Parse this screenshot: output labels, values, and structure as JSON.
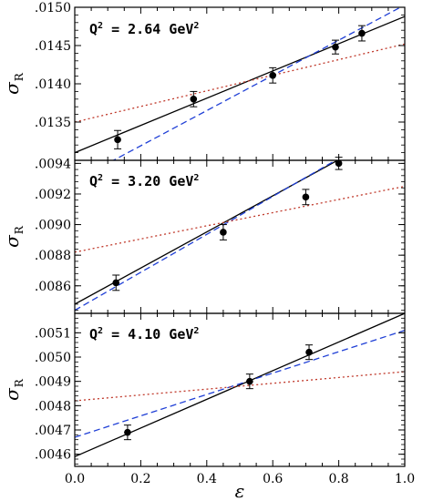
{
  "chart_data": [
    {
      "type": "scatter",
      "annotation": {
        "prefix": "Q",
        "sup": "2",
        "value": " = 2.64 GeV",
        "unit_sup": "2"
      },
      "ylabel": {
        "main": "σ",
        "sub": "R"
      },
      "xlim": [
        0.0,
        1.0
      ],
      "ylim": [
        0.013,
        0.015
      ],
      "yticks": [
        0.0135,
        0.014,
        0.0145,
        0.015
      ],
      "ytick_labels": [
        ".0135",
        ".0140",
        ".0145",
        ".0150"
      ],
      "points": [
        {
          "x": 0.13,
          "y": 0.01327,
          "err": 0.00012
        },
        {
          "x": 0.36,
          "y": 0.0138,
          "err": 0.0001
        },
        {
          "x": 0.6,
          "y": 0.01411,
          "err": 0.0001
        },
        {
          "x": 0.79,
          "y": 0.01448,
          "err": 9e-05
        },
        {
          "x": 0.87,
          "y": 0.01466,
          "err": 0.0001
        }
      ],
      "fits": [
        {
          "style": "solid",
          "color": "#000000",
          "y0": 0.0131,
          "y1": 0.01488
        },
        {
          "style": "dashed",
          "color": "#1f3fd6",
          "y0": 0.01273,
          "y1": 0.01503
        },
        {
          "style": "dotted",
          "color": "#c0392b",
          "y0": 0.0135,
          "y1": 0.01452
        }
      ]
    },
    {
      "type": "scatter",
      "annotation": {
        "prefix": "Q",
        "sup": "2",
        "value": " = 3.20 GeV",
        "unit_sup": "2"
      },
      "ylabel": {
        "main": "σ",
        "sub": "R"
      },
      "xlim": [
        0.0,
        1.0
      ],
      "ylim": [
        0.00842,
        0.00942
      ],
      "yticks": [
        0.0086,
        0.0088,
        0.009,
        0.0092,
        0.0094
      ],
      "ytick_labels": [
        ".0086",
        ".0088",
        ".0090",
        ".0092",
        ".0094"
      ],
      "points": [
        {
          "x": 0.125,
          "y": 0.00862,
          "err": 5e-05
        },
        {
          "x": 0.45,
          "y": 0.00895,
          "err": 5e-05
        },
        {
          "x": 0.7,
          "y": 0.00918,
          "err": 5e-05
        },
        {
          "x": 0.8,
          "y": 0.0094,
          "err": 4e-05
        }
      ],
      "fits": [
        {
          "style": "solid",
          "color": "#000000",
          "y0": 0.00848,
          "y1": 0.00966
        },
        {
          "style": "dashed",
          "color": "#1f3fd6",
          "y0": 0.00844,
          "y1": 0.00968
        },
        {
          "style": "dotted",
          "color": "#c0392b",
          "y0": 0.00882,
          "y1": 0.00925
        }
      ]
    },
    {
      "type": "scatter",
      "annotation": {
        "prefix": "Q",
        "sup": "2",
        "value": " = 4.10 GeV",
        "unit_sup": "2"
      },
      "ylabel": {
        "main": "σ",
        "sub": "R"
      },
      "xlim": [
        0.0,
        1.0
      ],
      "ylim": [
        0.00455,
        0.00518
      ],
      "yticks": [
        0.0046,
        0.0047,
        0.0048,
        0.0049,
        0.005,
        0.0051
      ],
      "ytick_labels": [
        ".0046",
        ".0047",
        ".0048",
        ".0049",
        ".0050",
        ".0051"
      ],
      "xticks": [
        0.0,
        0.2,
        0.4,
        0.6,
        0.8,
        1.0
      ],
      "xtick_labels": [
        "0.0",
        "0.2",
        "0.4",
        "0.6",
        "0.8",
        "1.0"
      ],
      "xlabel": "ε",
      "points": [
        {
          "x": 0.16,
          "y": 0.00469,
          "err": 3e-05
        },
        {
          "x": 0.53,
          "y": 0.0049,
          "err": 3e-05
        },
        {
          "x": 0.71,
          "y": 0.00502,
          "err": 3e-05
        }
      ],
      "fits": [
        {
          "style": "solid",
          "color": "#000000",
          "y0": 0.00459,
          "y1": 0.00518
        },
        {
          "style": "dashed",
          "color": "#1f3fd6",
          "y0": 0.00467,
          "y1": 0.00511
        },
        {
          "style": "dotted",
          "color": "#c0392b",
          "y0": 0.00482,
          "y1": 0.00494
        }
      ]
    }
  ]
}
